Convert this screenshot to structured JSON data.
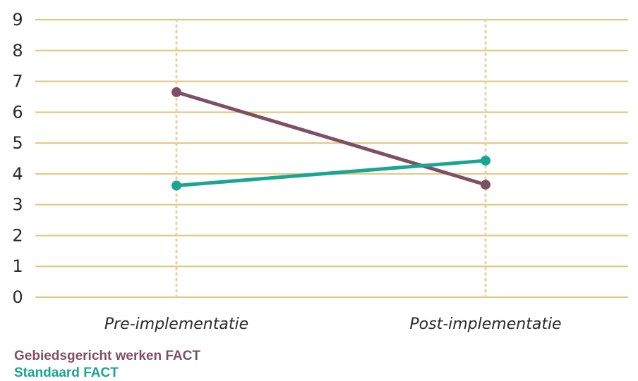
{
  "chart_data": {
    "type": "line",
    "title": "",
    "xlabel": "",
    "ylabel": "",
    "categories": [
      "Pre-implementatie",
      "Post-implementatie"
    ],
    "ylim": [
      0,
      9
    ],
    "yticks": [
      "0",
      "1",
      "2",
      "3",
      "4",
      "5",
      "6",
      "7",
      "8",
      "9"
    ],
    "grid": true,
    "legend_placement": "bottom-left",
    "colors": {
      "grid": "#e1c67a",
      "vertical_guides": "#e8d39a"
    },
    "series": [
      {
        "name": "Gebiedsgericht werken FACT",
        "values": [
          6.65,
          3.65
        ],
        "color": "#7f4f63"
      },
      {
        "name": "Standaard FACT",
        "values": [
          3.62,
          4.43
        ],
        "color": "#18a591"
      }
    ]
  }
}
